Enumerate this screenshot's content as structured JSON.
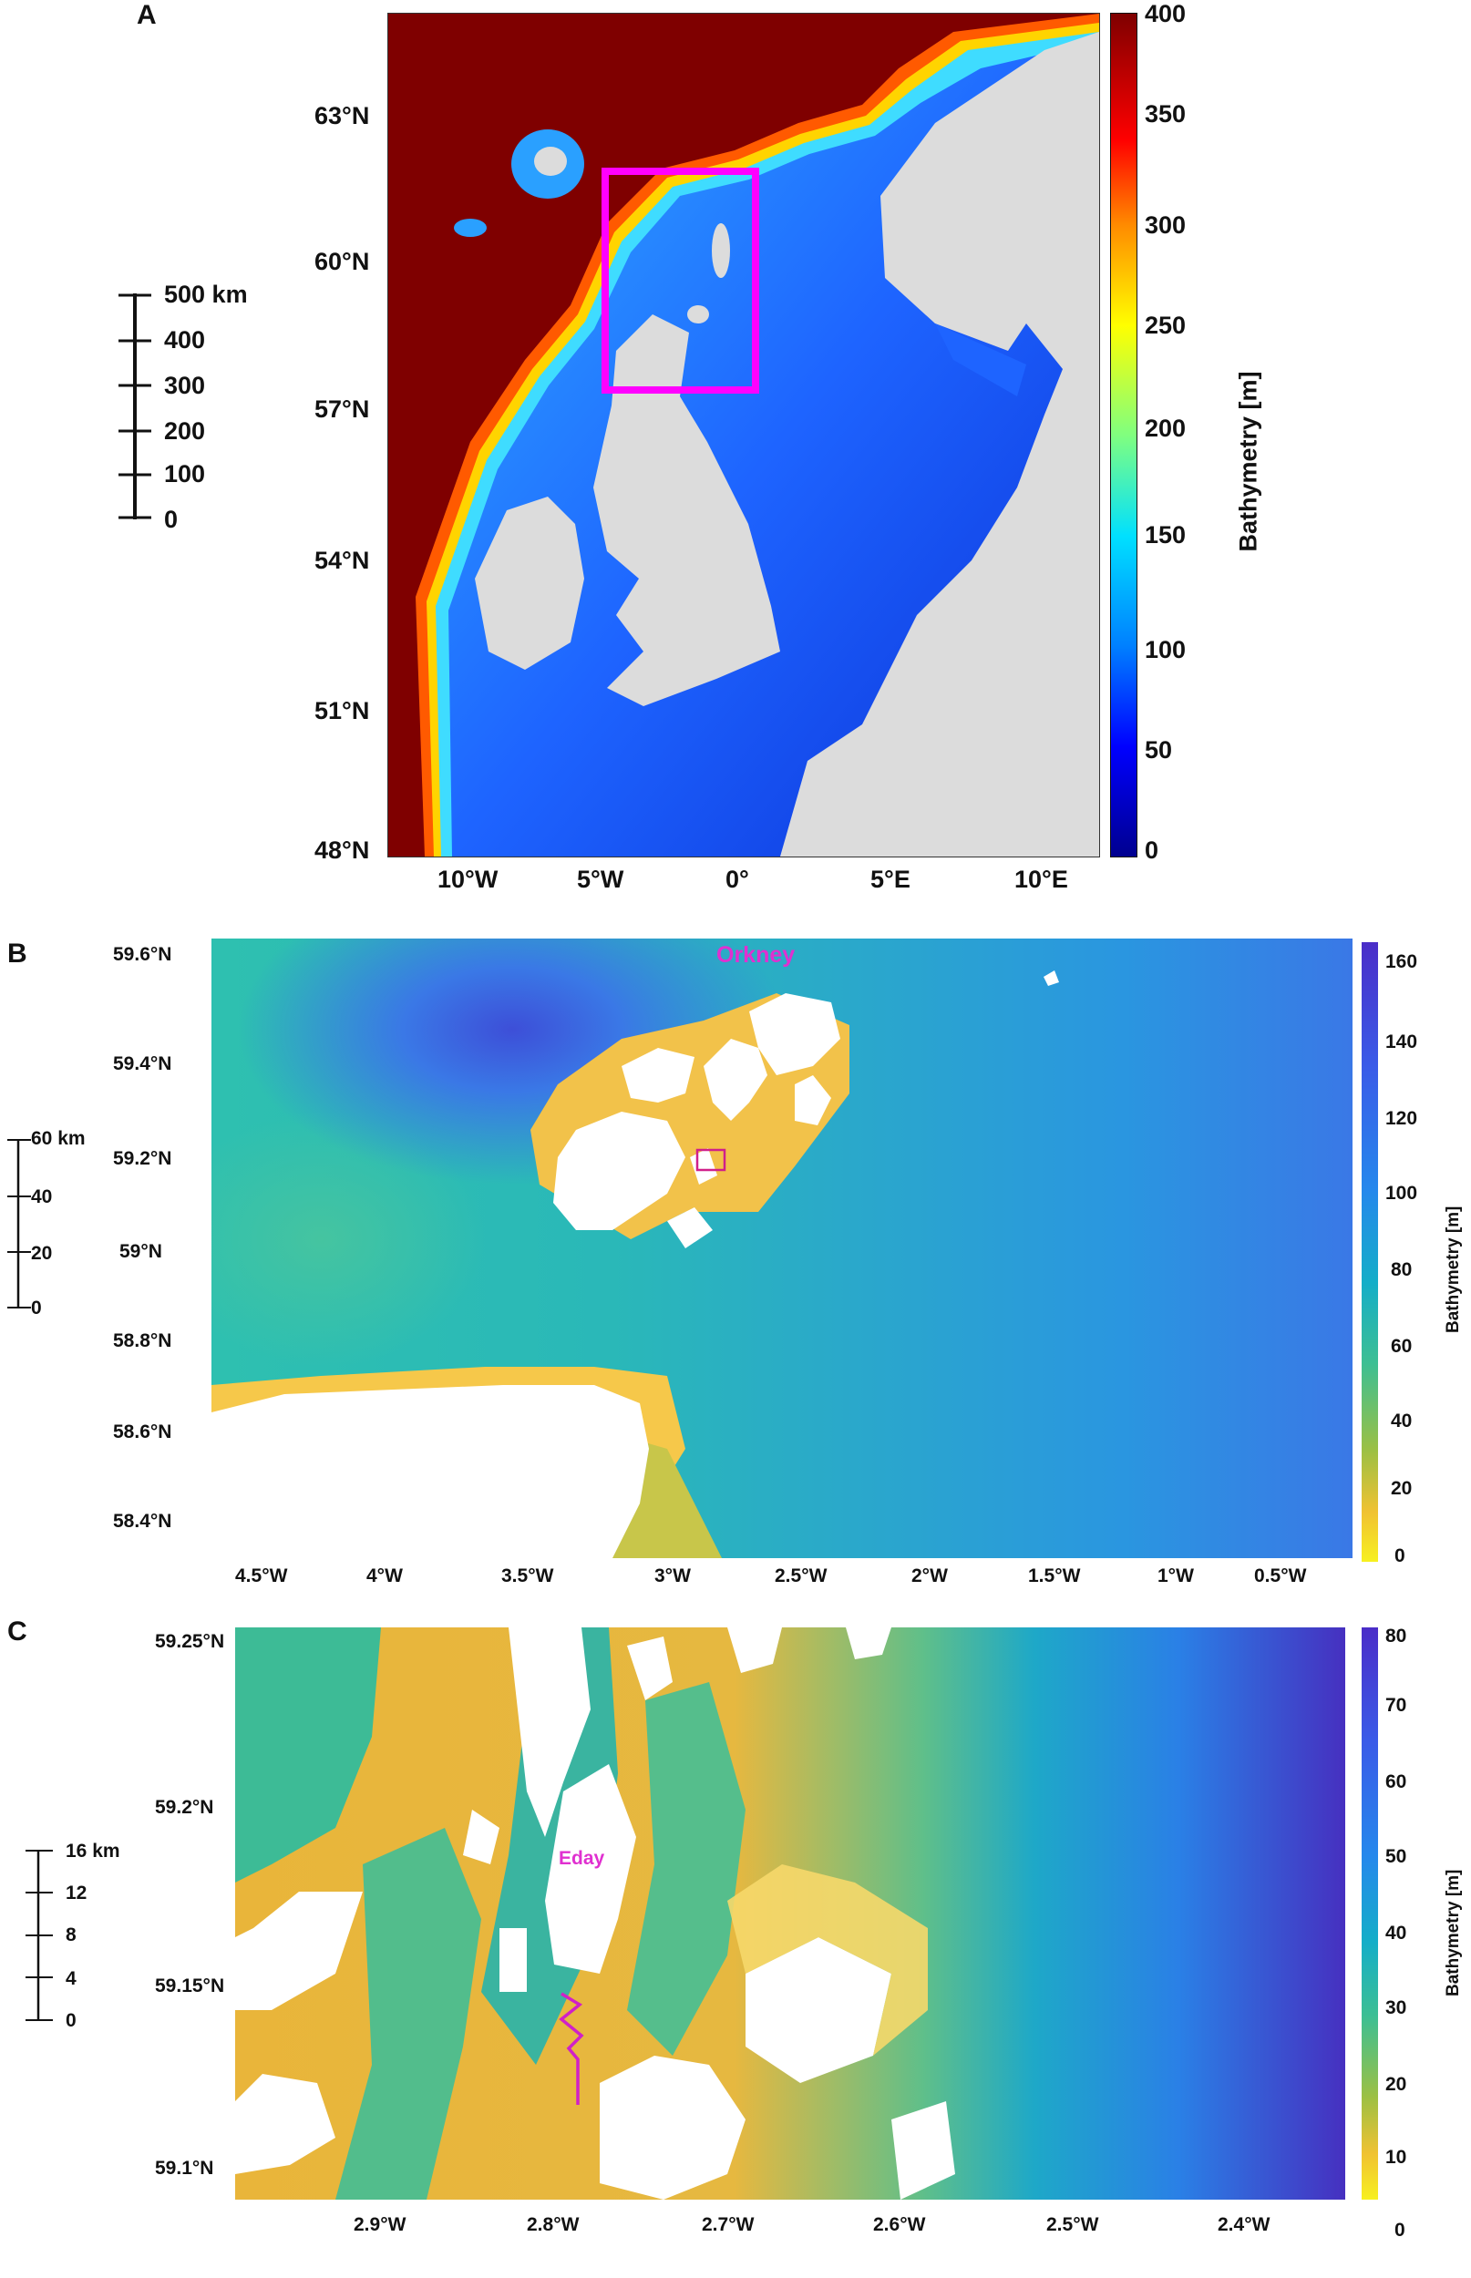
{
  "panels": {
    "a": {
      "letter": "A",
      "lat_labels": [
        "63°N",
        "60°N",
        "57°N",
        "54°N",
        "51°N",
        "48°N"
      ],
      "lon_labels": [
        "10°W",
        "5°W",
        "0°",
        "5°E",
        "10°E"
      ],
      "scale_bar": {
        "labels": [
          "500 km",
          "400",
          "300",
          "200",
          "100",
          "0"
        ]
      },
      "colorbar": {
        "title": "Bathymetry [m]",
        "ticks": [
          "400",
          "350",
          "300",
          "250",
          "200",
          "150",
          "100",
          "50",
          "0"
        ]
      },
      "colors": {
        "deep": "#7f0000",
        "land": "#dcdcdc",
        "box": "#ff00ff"
      }
    },
    "b": {
      "letter": "B",
      "lat_labels": [
        "59.6°N",
        "59.4°N",
        "59.2°N",
        "59°N",
        "58.8°N",
        "58.6°N",
        "58.4°N"
      ],
      "lon_labels": [
        "4.5°W",
        "4°W",
        "3.5°W",
        "3°W",
        "2.5°W",
        "2°W",
        "1.5°W",
        "1°W",
        "0.5°W"
      ],
      "place_label": "Orkney",
      "scale_bar": {
        "labels": [
          "60 km",
          "40",
          "20",
          "0"
        ]
      },
      "colorbar": {
        "title": "Bathymetry [m]",
        "ticks": [
          "160",
          "140",
          "120",
          "100",
          "80",
          "60",
          "40",
          "20",
          "0"
        ]
      }
    },
    "c": {
      "letter": "C",
      "lat_labels": [
        "59.25°N",
        "59.2°N",
        "59.15°N",
        "59.1°N"
      ],
      "lon_labels": [
        "2.9°W",
        "2.8°W",
        "2.7°W",
        "2.6°W",
        "2.5°W",
        "2.4°W"
      ],
      "place_label": "Eday",
      "scale_bar": {
        "labels": [
          "16 km",
          "12",
          "8",
          "4",
          "0"
        ]
      },
      "colorbar": {
        "title": "Bathymetry [m]",
        "ticks": [
          "80",
          "70",
          "60",
          "50",
          "40",
          "30",
          "20",
          "10",
          "0"
        ]
      }
    }
  }
}
